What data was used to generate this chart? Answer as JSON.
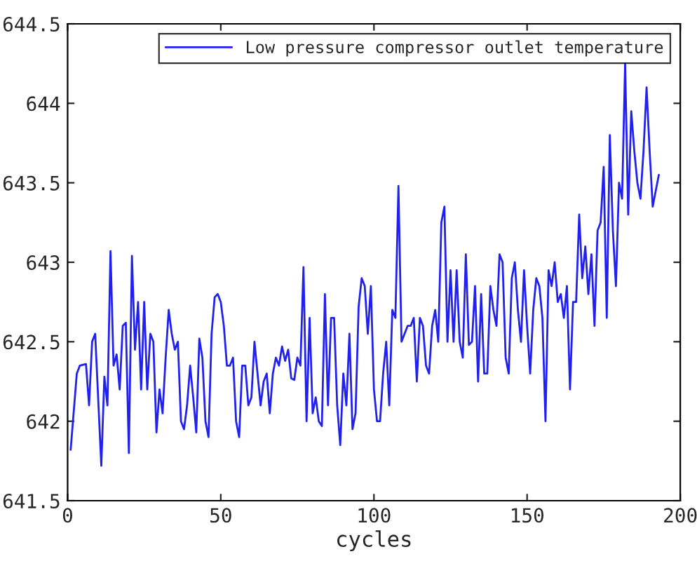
{
  "chart_data": {
    "type": "line",
    "xlabel": "cycles",
    "xlim": [
      0,
      200
    ],
    "xticks": [
      0,
      50,
      100,
      150,
      200
    ],
    "ylim": [
      641.5,
      644.5
    ],
    "yticks": [
      641.5,
      642,
      642.5,
      643,
      643.5,
      644,
      644.5
    ],
    "grid": false,
    "legend": "top right",
    "marker": "none",
    "line_style": "solid",
    "series": [
      {
        "name": "Low pressure compressor outlet temperature",
        "color": "#2020f0",
        "x": [
          1,
          3,
          4,
          6,
          7,
          8,
          9,
          11,
          12,
          13,
          14,
          15,
          16,
          17,
          18,
          19,
          20,
          21,
          22,
          23,
          24,
          25,
          26,
          27,
          28,
          29,
          30,
          31,
          32,
          33,
          34,
          35,
          36,
          37,
          38,
          39,
          40,
          41,
          42,
          43,
          44,
          45,
          46,
          47,
          48,
          49,
          50,
          51,
          52,
          53,
          54,
          55,
          56,
          57,
          58,
          59,
          60,
          61,
          62,
          63,
          64,
          65,
          66,
          67,
          68,
          69,
          70,
          71,
          72,
          73,
          74,
          75,
          76,
          77,
          78,
          79,
          80,
          81,
          82,
          83,
          84,
          85,
          86,
          87,
          88,
          89,
          90,
          91,
          92,
          93,
          94,
          95,
          96,
          97,
          98,
          99,
          100,
          101,
          102,
          103,
          104,
          105,
          106,
          107,
          108,
          109,
          110,
          111,
          112,
          113,
          114,
          115,
          116,
          117,
          118,
          119,
          120,
          121,
          122,
          123,
          124,
          125,
          126,
          127,
          128,
          129,
          130,
          131,
          132,
          133,
          134,
          135,
          136,
          137,
          138,
          139,
          140,
          141,
          142,
          143,
          144,
          145,
          146,
          147,
          148,
          149,
          150,
          151,
          152,
          153,
          154,
          155,
          156,
          157,
          158,
          159,
          160,
          161,
          162,
          163,
          164,
          165,
          166,
          167,
          168,
          169,
          170,
          171,
          172,
          173,
          174,
          175,
          176,
          177,
          178,
          179,
          180,
          181,
          182,
          183,
          184,
          185,
          186,
          187,
          188,
          189,
          190,
          191,
          192,
          193
        ],
        "values": [
          641.82,
          642.3,
          642.35,
          642.36,
          642.1,
          642.5,
          642.55,
          641.72,
          642.28,
          642.1,
          643.07,
          642.35,
          642.42,
          642.2,
          642.6,
          642.62,
          641.8,
          643.04,
          642.45,
          642.75,
          642.2,
          642.75,
          642.2,
          642.55,
          642.5,
          641.93,
          642.2,
          642.05,
          642.4,
          642.7,
          642.55,
          642.45,
          642.5,
          642.0,
          641.95,
          642.1,
          642.35,
          642.15,
          641.93,
          642.52,
          642.4,
          642.0,
          641.9,
          642.55,
          642.78,
          642.8,
          642.75,
          642.6,
          642.35,
          642.35,
          642.4,
          642.0,
          641.9,
          642.35,
          642.35,
          642.1,
          642.15,
          642.5,
          642.3,
          642.1,
          642.25,
          642.3,
          642.05,
          642.3,
          642.4,
          642.35,
          642.47,
          642.38,
          642.45,
          642.27,
          642.26,
          642.4,
          642.35,
          642.97,
          642.0,
          642.65,
          642.05,
          642.15,
          642.0,
          641.97,
          642.8,
          642.1,
          642.65,
          642.65,
          642.1,
          641.85,
          642.3,
          642.1,
          642.55,
          641.95,
          642.05,
          642.72,
          642.9,
          642.85,
          642.55,
          642.85,
          642.2,
          642.0,
          642.0,
          642.3,
          642.5,
          642.1,
          642.7,
          642.65,
          643.48,
          642.5,
          642.55,
          642.6,
          642.6,
          642.65,
          642.25,
          642.65,
          642.6,
          642.35,
          642.3,
          642.6,
          642.7,
          642.5,
          643.25,
          643.35,
          642.5,
          642.95,
          642.5,
          642.95,
          642.5,
          642.4,
          643.05,
          642.48,
          642.5,
          642.85,
          642.25,
          642.8,
          642.3,
          642.3,
          642.85,
          642.7,
          642.6,
          643.05,
          643.0,
          642.4,
          642.3,
          642.9,
          643.0,
          642.7,
          642.5,
          642.95,
          642.6,
          642.3,
          642.7,
          642.9,
          642.85,
          642.65,
          642.0,
          642.95,
          642.85,
          643.0,
          642.75,
          642.8,
          642.65,
          642.85,
          642.2,
          642.75,
          642.75,
          643.3,
          642.9,
          643.1,
          642.8,
          643.05,
          642.6,
          643.2,
          643.25,
          643.6,
          642.65,
          643.8,
          643.2,
          642.85,
          643.5,
          643.4,
          644.25,
          643.3,
          643.95,
          643.7,
          643.5,
          643.4,
          643.7,
          644.1,
          643.7,
          643.35,
          643.45,
          643.55
        ]
      }
    ]
  }
}
